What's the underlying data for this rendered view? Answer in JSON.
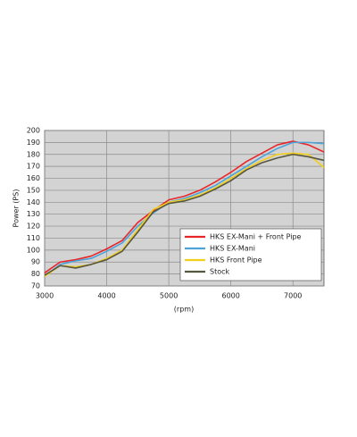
{
  "chart_data": {
    "type": "line",
    "x_label": "(rpm)",
    "y_label": "Power (PS)",
    "x": [
      3000,
      3250,
      3500,
      3750,
      4000,
      4250,
      4500,
      4750,
      5000,
      5250,
      5500,
      5750,
      6000,
      6250,
      6500,
      6750,
      7000,
      7250,
      7500
    ],
    "series": [
      {
        "name": "HKS EX-Mani + Front Pipe",
        "color": "#e8262a",
        "values": [
          81,
          90,
          92,
          95,
          101,
          108,
          123,
          133,
          142,
          145,
          150,
          157,
          165,
          174,
          181,
          188,
          191,
          188,
          182
        ]
      },
      {
        "name": "HKS EX-Mani",
        "color": "#4ba3d8",
        "values": [
          78,
          88,
          91,
          93,
          99,
          106,
          120,
          131,
          140,
          143,
          148,
          154,
          162,
          170,
          178,
          185,
          190,
          190,
          189
        ]
      },
      {
        "name": "HKS Front Pipe",
        "color": "#f2cf1c",
        "values": [
          78,
          87,
          86,
          88,
          93,
          100,
          117,
          134,
          140,
          142,
          146,
          152,
          160,
          168,
          175,
          180,
          181,
          180,
          169
        ]
      },
      {
        "name": "Stock",
        "color": "#575640",
        "values": [
          79,
          87,
          85,
          88,
          92,
          99,
          115,
          132,
          139,
          141,
          145,
          151,
          158,
          167,
          173,
          177,
          180,
          178,
          175
        ]
      }
    ],
    "xlim": [
      3000,
      7500
    ],
    "xticks": [
      3000,
      4000,
      5000,
      6000,
      7000
    ],
    "ylim": [
      70,
      200
    ],
    "yticks": [
      70,
      80,
      90,
      100,
      110,
      120,
      130,
      140,
      150,
      160,
      170,
      180,
      190,
      200
    ],
    "grid": true,
    "legend": "lower right"
  }
}
